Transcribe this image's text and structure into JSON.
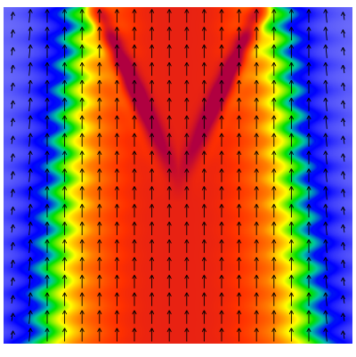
{
  "figure": {
    "kind": "vector-field-over-scalar-colormap",
    "colormap": {
      "name": "rainbow",
      "stops": [
        "#e8e8f4",
        "#0000ff",
        "#00c8a0",
        "#00e000",
        "#ffff00",
        "#ff8000",
        "#ff3000",
        "#b00040"
      ]
    },
    "arrows": {
      "color": "#000000",
      "direction": "up",
      "grid_columns": 20,
      "grid_rows": 19
    }
  }
}
